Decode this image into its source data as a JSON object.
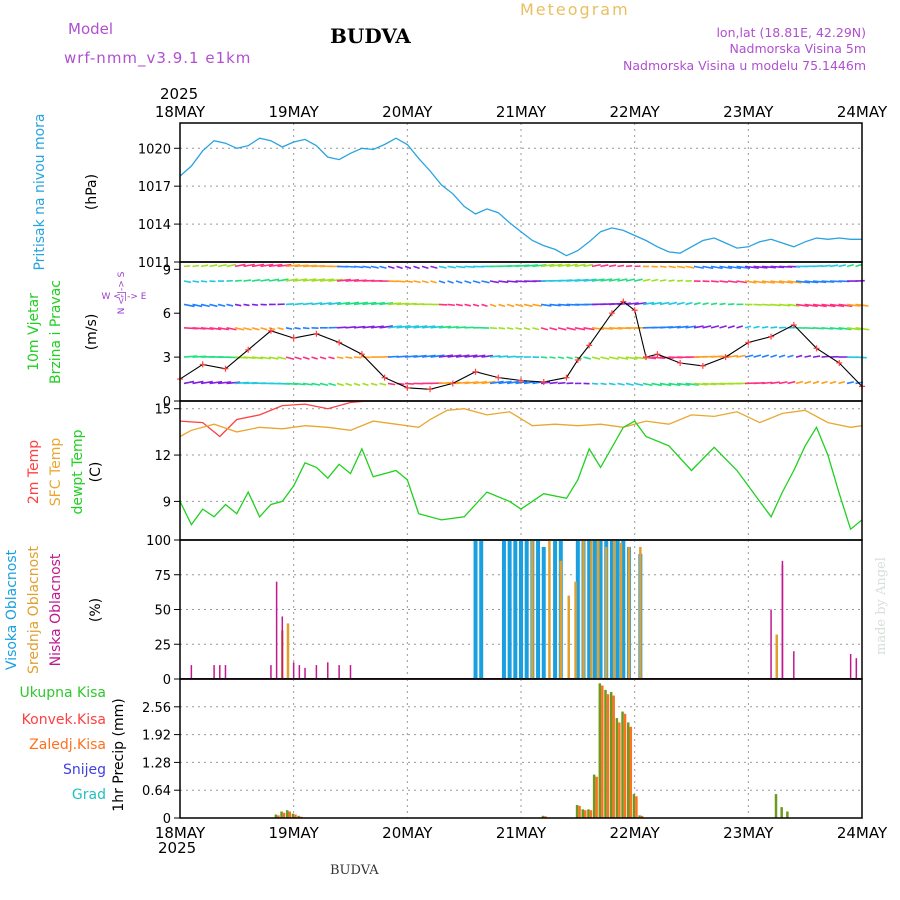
{
  "header": {
    "model_label": "Model",
    "model_name": "wrf-nmm_v3.9.1 e1km",
    "station": "BUDVA",
    "product": "Meteogram",
    "lonlat": "lon,lat (18.81E, 42.29N)",
    "altitude": "Nadmorska Visina 5m",
    "model_altitude": "Nadmorska Visina u modelu 75.1446m",
    "footer_station": "BUDVA",
    "credit": "made by Angel"
  },
  "colors": {
    "pressure": "#29a3e0",
    "t2m": "#ff4040",
    "tsfc": "#e8a830",
    "dewpt": "#20d020",
    "high_cloud": "#1aa0e0",
    "mid_cloud": "#e0a030",
    "low_cloud": "#c01890",
    "precip_total": "#2ec82e",
    "precip_conv": "#ff4040",
    "precip_frz": "#ff7020",
    "snow": "#4040e0",
    "hail": "#20c0c0",
    "title_mag": "#9a40c8",
    "gold": "#e8c060"
  },
  "chart_data": [
    {
      "type": "line",
      "panel": "pressure",
      "ylabel_left": "Pritisak na nivou mora",
      "ylabel_unit": "(hPa)",
      "xlabels": [
        "18MAY",
        "19MAY",
        "20MAY",
        "21MAY",
        "22MAY",
        "23MAY",
        "24MAY"
      ],
      "year": "2025",
      "yticks": [
        "1011",
        "1014",
        "1017",
        "1020"
      ],
      "ylim": [
        1011,
        1022
      ],
      "x": [
        0,
        0.1,
        0.2,
        0.3,
        0.4,
        0.5,
        0.6,
        0.7,
        0.8,
        0.9,
        1.0,
        1.1,
        1.2,
        1.3,
        1.4,
        1.5,
        1.6,
        1.7,
        1.8,
        1.9,
        2.0,
        2.1,
        2.2,
        2.3,
        2.4,
        2.5,
        2.6,
        2.7,
        2.8,
        2.9,
        3.0,
        3.1,
        3.2,
        3.3,
        3.4,
        3.5,
        3.6,
        3.7,
        3.8,
        3.9,
        4.0,
        4.1,
        4.2,
        4.3,
        4.4,
        4.5,
        4.6,
        4.7,
        4.8,
        4.9,
        5.0,
        5.1,
        5.2,
        5.3,
        5.4,
        5.5,
        5.6,
        5.7,
        5.8,
        5.9,
        6.0
      ],
      "values": [
        1017.8,
        1018.6,
        1019.8,
        1020.6,
        1020.4,
        1020.0,
        1020.2,
        1020.8,
        1020.6,
        1020.1,
        1020.5,
        1020.7,
        1020.2,
        1019.3,
        1019.1,
        1019.6,
        1020.0,
        1019.9,
        1020.3,
        1020.8,
        1020.3,
        1019.2,
        1018.2,
        1017.1,
        1016.4,
        1015.4,
        1014.8,
        1015.2,
        1014.9,
        1014.1,
        1013.4,
        1012.7,
        1012.3,
        1012.0,
        1011.5,
        1011.9,
        1012.6,
        1013.4,
        1013.7,
        1013.5,
        1013.1,
        1012.7,
        1012.2,
        1011.8,
        1011.7,
        1012.2,
        1012.7,
        1012.9,
        1012.5,
        1012.1,
        1012.2,
        1012.6,
        1012.8,
        1012.5,
        1012.2,
        1012.6,
        1012.9,
        1012.8,
        1012.9,
        1012.8,
        1012.8
      ]
    },
    {
      "type": "line",
      "panel": "wind",
      "ylabel_left": [
        "10m Vjetar",
        "Brzina i Pravac"
      ],
      "ylabel_unit": "(m/s)",
      "compass": "N <--|--> S  W <--|--> E",
      "compass_vertical": "N <-|-> S",
      "compass_horizontal": "W <-|-> E",
      "yticks": [
        "0",
        "3",
        "6",
        "9"
      ],
      "ylim": [
        0,
        9.5
      ],
      "x": [
        0,
        0.2,
        0.4,
        0.6,
        0.8,
        1.0,
        1.2,
        1.4,
        1.6,
        1.8,
        2.0,
        2.2,
        2.4,
        2.6,
        2.8,
        3.0,
        3.2,
        3.4,
        3.5,
        3.6,
        3.8,
        3.9,
        4.0,
        4.1,
        4.2,
        4.4,
        4.6,
        4.8,
        5.0,
        5.2,
        5.4,
        5.6,
        5.8,
        6.0
      ],
      "speed": [
        1.5,
        2.5,
        2.2,
        3.5,
        4.8,
        4.3,
        4.6,
        4.0,
        3.2,
        1.6,
        0.9,
        0.8,
        1.2,
        2.0,
        1.6,
        1.4,
        1.3,
        1.6,
        2.8,
        3.8,
        6.0,
        6.8,
        6.2,
        3.0,
        3.2,
        2.6,
        2.4,
        3.0,
        4.0,
        4.4,
        5.2,
        3.6,
        2.6,
        1.0
      ],
      "rows": [
        1.2,
        3.0,
        5.0,
        6.6,
        8.2,
        9.2
      ]
    },
    {
      "type": "line",
      "panel": "temperature",
      "ylabel_left": [
        "2m Temp",
        "SFC Temp",
        "dewpt Temp"
      ],
      "ylabel_unit": "(C)",
      "yticks": [
        "9",
        "12",
        "15"
      ],
      "ylim": [
        6.5,
        15.5
      ],
      "series": [
        {
          "key": "t2m",
          "x": [
            0,
            0.2,
            0.35,
            0.5,
            0.7,
            0.9,
            1.1,
            1.3,
            1.5,
            1.65
          ],
          "values": [
            14.2,
            14.1,
            13.2,
            14.3,
            14.6,
            15.2,
            15.3,
            15.0,
            15.4,
            15.5
          ]
        },
        {
          "key": "tsfc",
          "x": [
            0,
            0.1,
            0.3,
            0.5,
            0.7,
            0.9,
            1.1,
            1.3,
            1.5,
            1.7,
            1.9,
            2.1,
            2.2,
            2.35,
            2.5,
            2.7,
            2.9,
            3.1,
            3.3,
            3.5,
            3.7,
            3.9,
            4.1,
            4.3,
            4.5,
            4.7,
            4.9,
            5.1,
            5.3,
            5.5,
            5.7,
            5.9,
            6.0
          ],
          "values": [
            13.2,
            13.6,
            14.0,
            13.5,
            13.8,
            13.7,
            13.9,
            13.8,
            13.6,
            14.2,
            14.0,
            13.8,
            14.3,
            14.9,
            15.0,
            14.6,
            14.8,
            13.9,
            14.0,
            13.9,
            14.0,
            13.8,
            14.2,
            14.0,
            14.6,
            14.5,
            14.8,
            14.1,
            14.7,
            14.9,
            14.1,
            13.8,
            13.9
          ]
        },
        {
          "key": "dewpt",
          "x": [
            0,
            0.1,
            0.2,
            0.3,
            0.4,
            0.5,
            0.6,
            0.7,
            0.8,
            0.9,
            1.0,
            1.1,
            1.2,
            1.3,
            1.4,
            1.5,
            1.6,
            1.7,
            1.8,
            1.9,
            2.0,
            2.1,
            2.3,
            2.5,
            2.7,
            2.9,
            3.0,
            3.2,
            3.4,
            3.5,
            3.6,
            3.7,
            3.9,
            4.0,
            4.1,
            4.3,
            4.5,
            4.7,
            4.9,
            5.1,
            5.2,
            5.3,
            5.4,
            5.5,
            5.6,
            5.7,
            5.8,
            5.9,
            6.0
          ],
          "values": [
            9.0,
            7.5,
            8.5,
            8.0,
            8.8,
            8.2,
            9.6,
            8.0,
            8.8,
            9.0,
            10.0,
            11.5,
            11.2,
            10.5,
            11.4,
            10.8,
            12.4,
            10.6,
            10.8,
            11.0,
            10.4,
            8.2,
            7.8,
            8.0,
            9.6,
            9.0,
            8.5,
            9.5,
            9.2,
            10.4,
            12.4,
            11.2,
            13.8,
            14.2,
            13.2,
            12.6,
            11.0,
            12.5,
            11.0,
            9.0,
            8.0,
            9.6,
            11.0,
            12.6,
            13.8,
            12.0,
            9.5,
            7.2,
            7.8
          ]
        }
      ]
    },
    {
      "type": "bar",
      "panel": "clouds",
      "ylabel_left": [
        "Visoka Oblacnost",
        "Srednja Oblacnost",
        "Niska Oblacnost"
      ],
      "ylabel_unit": "(%)",
      "yticks": [
        "0",
        "25",
        "50",
        "75",
        "100"
      ],
      "ylim": [
        0,
        100
      ],
      "series": [
        {
          "key": "high_cloud",
          "x": [
            2.6,
            2.65,
            2.85,
            2.9,
            2.95,
            3.0,
            3.05,
            3.1,
            3.15,
            3.2,
            3.3,
            3.35,
            3.5,
            3.55,
            3.6,
            3.65,
            3.7,
            3.75,
            3.8,
            3.85,
            3.9,
            3.95,
            4.05
          ],
          "values": [
            100,
            100,
            100,
            100,
            100,
            100,
            100,
            100,
            100,
            95,
            100,
            100,
            100,
            100,
            100,
            100,
            100,
            100,
            100,
            100,
            100,
            95,
            90
          ]
        },
        {
          "key": "mid_cloud",
          "x": [
            0.9,
            0.95,
            3.1,
            3.25,
            3.35,
            3.42,
            3.48,
            3.55,
            3.62,
            3.68,
            3.75,
            3.82,
            3.88,
            3.95,
            4.05,
            5.25
          ],
          "values": [
            35,
            40,
            100,
            100,
            85,
            60,
            70,
            100,
            100,
            100,
            95,
            100,
            98,
            95,
            95,
            32
          ]
        },
        {
          "key": "low_cloud",
          "x": [
            0.1,
            0.3,
            0.35,
            0.4,
            0.8,
            0.85,
            0.9,
            1.0,
            1.05,
            1.1,
            1.2,
            1.3,
            1.4,
            1.5,
            5.2,
            5.3,
            5.3,
            5.4,
            5.9,
            5.95
          ],
          "values": [
            10,
            10,
            10,
            10,
            10,
            70,
            45,
            12,
            10,
            8,
            10,
            12,
            10,
            10,
            50,
            82,
            85,
            20,
            18,
            15
          ]
        }
      ]
    },
    {
      "type": "bar",
      "panel": "precip",
      "ylabel_left": [
        "Ukupna Kisa",
        "Konvek.Kisa",
        "Zaledj.Kisa",
        "Snijeg",
        "Grad"
      ],
      "ylabel_unit": "1hr Precip (mm)",
      "yticks": [
        "0",
        "0.64",
        "1.28",
        "1.92",
        "2.56"
      ],
      "ylim": [
        0,
        3.2
      ],
      "x": [
        0.85,
        0.9,
        0.95,
        1.0,
        1.05,
        3.2,
        3.5,
        3.55,
        3.6,
        3.65,
        3.7,
        3.75,
        3.8,
        3.85,
        3.9,
        3.95,
        4.0,
        4.05,
        5.25,
        5.3,
        5.35
      ],
      "values": [
        0.08,
        0.15,
        0.18,
        0.1,
        0.05,
        0.05,
        0.3,
        0.2,
        0.2,
        1.0,
        3.1,
        2.95,
        2.9,
        2.3,
        2.45,
        2.2,
        0.55,
        0.06,
        0.55,
        0.25,
        0.15
      ],
      "frz": [
        0.06,
        0.12,
        0.15,
        0.08,
        0.03,
        0.04,
        0.28,
        0.18,
        0.18,
        0.95,
        3.05,
        2.85,
        2.82,
        2.2,
        2.4,
        2.1,
        0.5,
        0.05,
        0.0,
        0.0,
        0.0
      ]
    }
  ]
}
